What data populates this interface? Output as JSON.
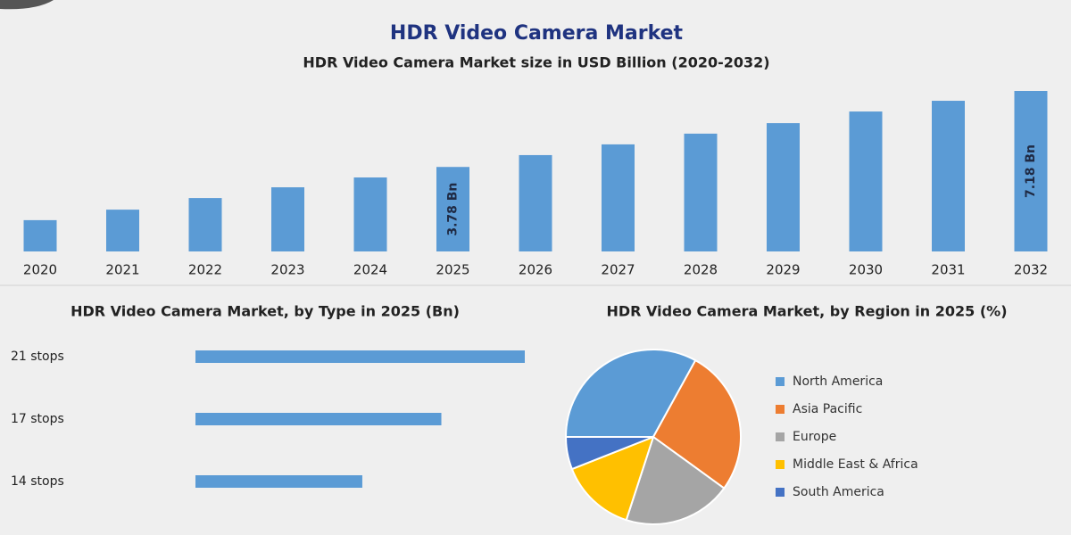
{
  "header": {
    "title": "HDR Video Camera Market"
  },
  "chart_data": [
    {
      "type": "bar",
      "title": "HDR Video Camera Market size in USD Billion (2020-2032)",
      "categories": [
        "2020",
        "2021",
        "2022",
        "2023",
        "2024",
        "2025",
        "2026",
        "2027",
        "2028",
        "2029",
        "2030",
        "2031",
        "2032"
      ],
      "values": [
        1.4,
        1.87,
        2.39,
        2.87,
        3.31,
        3.78,
        4.31,
        4.79,
        5.27,
        5.74,
        6.26,
        6.74,
        7.18
      ],
      "value_labels": [
        null,
        null,
        null,
        null,
        null,
        "3.78 Bn",
        null,
        null,
        null,
        null,
        null,
        null,
        "7.18 Bn"
      ],
      "color": "#5b9bd5"
    },
    {
      "type": "hbar",
      "title": "HDR Video Camera Market, by Type in 2025 (Bn)",
      "categories": [
        "21 stops",
        "17 stops",
        "14 stops"
      ],
      "values": [
        1.5,
        1.12,
        0.76
      ],
      "color": "#5b9bd5"
    },
    {
      "type": "pie",
      "title": "HDR Video Camera Market, by Region in 2025 (%)",
      "categories": [
        "North America",
        "Asia Pacific",
        "Europe",
        "Middle East & Africa",
        "South America"
      ],
      "values": [
        33,
        27,
        20,
        14,
        6
      ],
      "colors": [
        "#5b9bd5",
        "#ed7d31",
        "#a5a5a5",
        "#ffc000",
        "#4472c4"
      ]
    }
  ]
}
